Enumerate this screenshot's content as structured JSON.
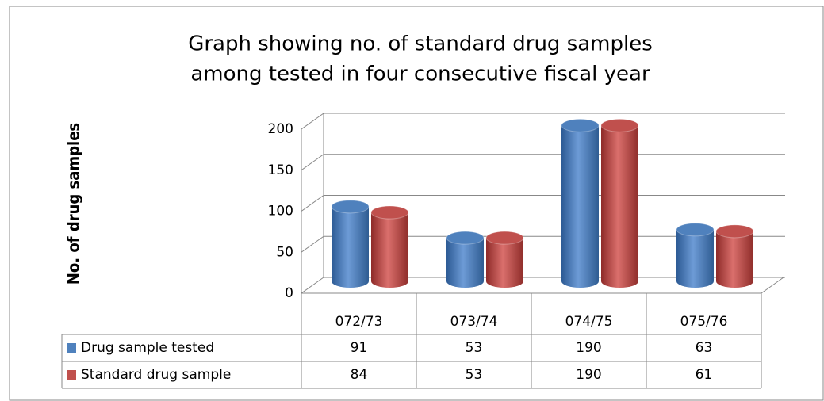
{
  "chart_data": {
    "type": "bar3d",
    "title": [
      "Graph showing no. of standard drug samples",
      "among tested in four consecutive fiscal year"
    ],
    "y_label": "No. of drug samples",
    "categories": [
      "072/73",
      "073/74",
      "074/75",
      "075/76"
    ],
    "series": [
      {
        "name": "Drug sample tested",
        "color": "#4f81bd",
        "values": [
          91,
          53,
          190,
          63
        ]
      },
      {
        "name": "Standard drug sample",
        "color": "#c0504d",
        "values": [
          84,
          53,
          190,
          61
        ]
      }
    ],
    "ylim": [
      0,
      200
    ],
    "yticks": [
      0,
      50,
      100,
      150,
      200
    ],
    "grid": true,
    "data_table": true
  }
}
